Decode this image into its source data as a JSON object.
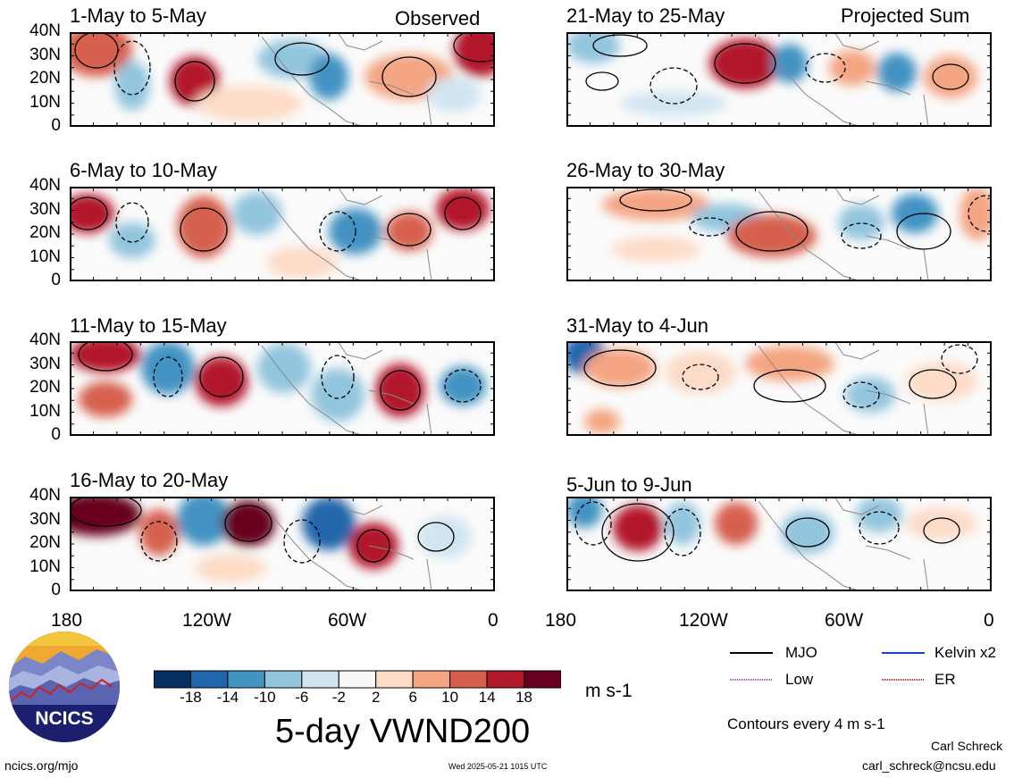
{
  "figure": {
    "title": "5-day VWND200",
    "units": "m s-1",
    "contour_note": "Contours every 4 m s-1",
    "author": "Carl Schreck",
    "email": "carl_schreck@ncsu.edu",
    "website": "ncics.org/mjo",
    "timestamp": "Wed 2025-05-21 1015 UTC",
    "logo_text": "NCICS"
  },
  "columns": {
    "left_tag": "Observed",
    "right_tag": "Projected Sum"
  },
  "panels_left": [
    {
      "title": "1-May to 5-May"
    },
    {
      "title": "6-May to 10-May"
    },
    {
      "title": "11-May to 15-May"
    },
    {
      "title": "16-May to 20-May"
    }
  ],
  "panels_right": [
    {
      "title": "21-May to 25-May"
    },
    {
      "title": "26-May to 30-May"
    },
    {
      "title": "31-May to 4-Jun"
    },
    {
      "title": "5-Jun to 9-Jun"
    }
  ],
  "axes": {
    "lat_labels": [
      "40N",
      "30N",
      "20N",
      "10N",
      "0"
    ],
    "lon_labels": [
      "180",
      "120W",
      "60W",
      "0"
    ]
  },
  "colorbar": {
    "ticks": [
      "-18",
      "-14",
      "-10",
      "-6",
      "-2",
      "2",
      "6",
      "10",
      "14",
      "18"
    ],
    "colors": [
      "#053061",
      "#2166ac",
      "#4393c3",
      "#92c5de",
      "#d1e5f0",
      "#f7f7f7",
      "#fddbc7",
      "#f4a582",
      "#d6604d",
      "#b2182b",
      "#67001f"
    ]
  },
  "legend": {
    "items": [
      {
        "label": "MJO",
        "color": "#000000"
      },
      {
        "label": "Kelvin x2",
        "color": "#1f3fd0"
      },
      {
        "label": "Low",
        "color": "#a050d8"
      },
      {
        "label": "ER",
        "color": "#d02020"
      }
    ]
  }
}
